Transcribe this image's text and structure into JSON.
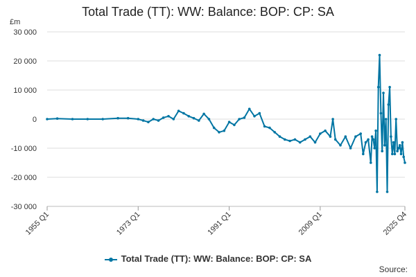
{
  "chart_data": {
    "type": "line",
    "title": "Total Trade (TT): WW: Balance: BOP: CP: SA",
    "y_unit": "£m",
    "xlabel": "",
    "ylabel": "",
    "ylim": [
      -30000,
      30000
    ],
    "y_ticks": [
      -30000,
      -20000,
      -10000,
      0,
      10000,
      20000,
      30000
    ],
    "y_tick_labels": [
      "-30 000",
      "-20 000",
      "-10 000",
      "0",
      "10 000",
      "20 000",
      "30 000"
    ],
    "x_ticks": [
      "1955 Q1",
      "1973 Q1",
      "1991 Q1",
      "2009 Q1",
      "2025 Q4"
    ],
    "grid": "horizontal",
    "legend_position": "bottom",
    "series": [
      {
        "name": "Total Trade (TT): WW: Balance: BOP: CP: SA",
        "color": "#0075a3",
        "x": [
          "1955 Q1",
          "1957 Q1",
          "1960 Q1",
          "1963 Q1",
          "1966 Q1",
          "1969 Q1",
          "1971 Q1",
          "1973 Q1",
          "1974 Q1",
          "1975 Q1",
          "1976 Q1",
          "1977 Q1",
          "1978 Q1",
          "1979 Q1",
          "1980 Q1",
          "1981 Q1",
          "1982 Q1",
          "1983 Q1",
          "1984 Q1",
          "1985 Q1",
          "1986 Q1",
          "1987 Q1",
          "1988 Q1",
          "1989 Q1",
          "1990 Q1",
          "1991 Q1",
          "1992 Q1",
          "1993 Q1",
          "1994 Q1",
          "1995 Q1",
          "1996 Q1",
          "1997 Q1",
          "1998 Q1",
          "1999 Q1",
          "2000 Q1",
          "2001 Q1",
          "2002 Q1",
          "2003 Q1",
          "2004 Q1",
          "2005 Q1",
          "2006 Q1",
          "2007 Q1",
          "2008 Q1",
          "2009 Q1",
          "2010 Q1",
          "2011 Q1",
          "2011 Q3",
          "2012 Q1",
          "2013 Q1",
          "2014 Q1",
          "2015 Q1",
          "2016 Q1",
          "2017 Q1",
          "2017 Q3",
          "2018 Q1",
          "2018 Q3",
          "2019 Q1",
          "2019 Q2",
          "2019 Q3",
          "2019 Q4",
          "2020 Q1",
          "2020 Q2",
          "2020 Q3",
          "2020 Q4",
          "2021 Q1",
          "2021 Q2",
          "2021 Q3",
          "2021 Q4",
          "2022 Q1",
          "2022 Q2",
          "2022 Q3",
          "2022 Q4",
          "2023 Q1",
          "2023 Q2",
          "2023 Q3",
          "2023 Q4",
          "2024 Q1",
          "2024 Q2",
          "2024 Q3",
          "2024 Q4",
          "2025 Q1",
          "2025 Q2",
          "2025 Q3",
          "2025 Q4"
        ],
        "values": [
          0,
          200,
          0,
          0,
          0,
          300,
          300,
          0,
          -500,
          -1000,
          0,
          -500,
          500,
          1000,
          0,
          2800,
          2000,
          1000,
          300,
          -500,
          1800,
          0,
          -3000,
          -4500,
          -4000,
          -1000,
          -2000,
          0,
          500,
          3500,
          1000,
          2000,
          -2500,
          -3000,
          -4500,
          -6000,
          -7000,
          -7500,
          -7000,
          -8000,
          -7000,
          -6000,
          -8000,
          -5000,
          -4000,
          -6000,
          0,
          -7000,
          -9000,
          -6000,
          -10000,
          -6000,
          -5000,
          -12000,
          -8000,
          -7000,
          -15000,
          -6000,
          -7000,
          -10000,
          -4000,
          -25000,
          11000,
          22000,
          2000,
          -11000,
          9000,
          -9000,
          0,
          -25000,
          5000,
          11000,
          -6000,
          -12000,
          -8000,
          -12000,
          0,
          -11000,
          -10000,
          -9000,
          -12000,
          -8000,
          -13000,
          -15000
        ]
      }
    ]
  }
}
